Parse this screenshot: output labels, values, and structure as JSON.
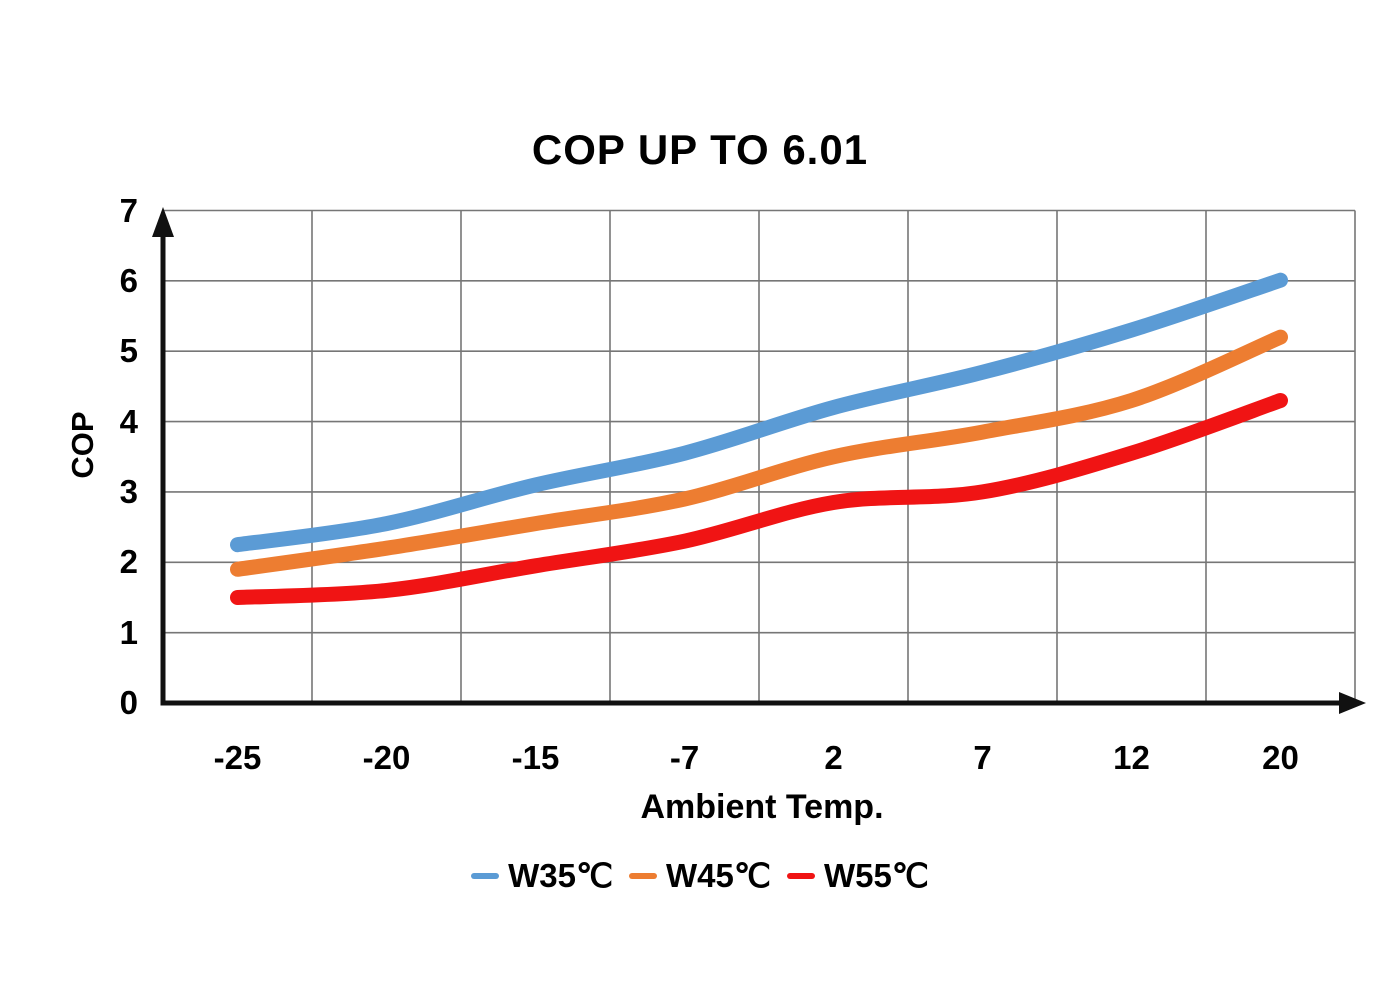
{
  "chart_data": {
    "type": "line",
    "title": "COP UP TO 6.01",
    "xlabel": "Ambient Temp.",
    "ylabel": "COP",
    "categories": [
      "-25",
      "-20",
      "-15",
      "-7",
      "2",
      "7",
      "12",
      "20"
    ],
    "y_ticks": [
      "0",
      "1",
      "2",
      "3",
      "4",
      "5",
      "6",
      "7"
    ],
    "ylim": [
      0,
      7
    ],
    "grid": true,
    "line_smoothing": true,
    "legend_position": "bottom",
    "series": [
      {
        "name": "W35℃",
        "color": "#5b9bd5",
        "values": [
          2.25,
          2.55,
          3.1,
          3.55,
          4.2,
          4.7,
          5.3,
          6.01
        ]
      },
      {
        "name": "W45℃",
        "color": "#ed7d31",
        "values": [
          1.9,
          2.2,
          2.55,
          2.9,
          3.5,
          3.85,
          4.3,
          5.2
        ]
      },
      {
        "name": "W55℃",
        "color": "#f01414",
        "values": [
          1.5,
          1.6,
          1.95,
          2.3,
          2.85,
          3.0,
          3.55,
          4.3
        ]
      }
    ],
    "colors": {
      "gridline": "#767676",
      "axis": "#111111",
      "text": "#000000",
      "background": "#ffffff"
    }
  }
}
